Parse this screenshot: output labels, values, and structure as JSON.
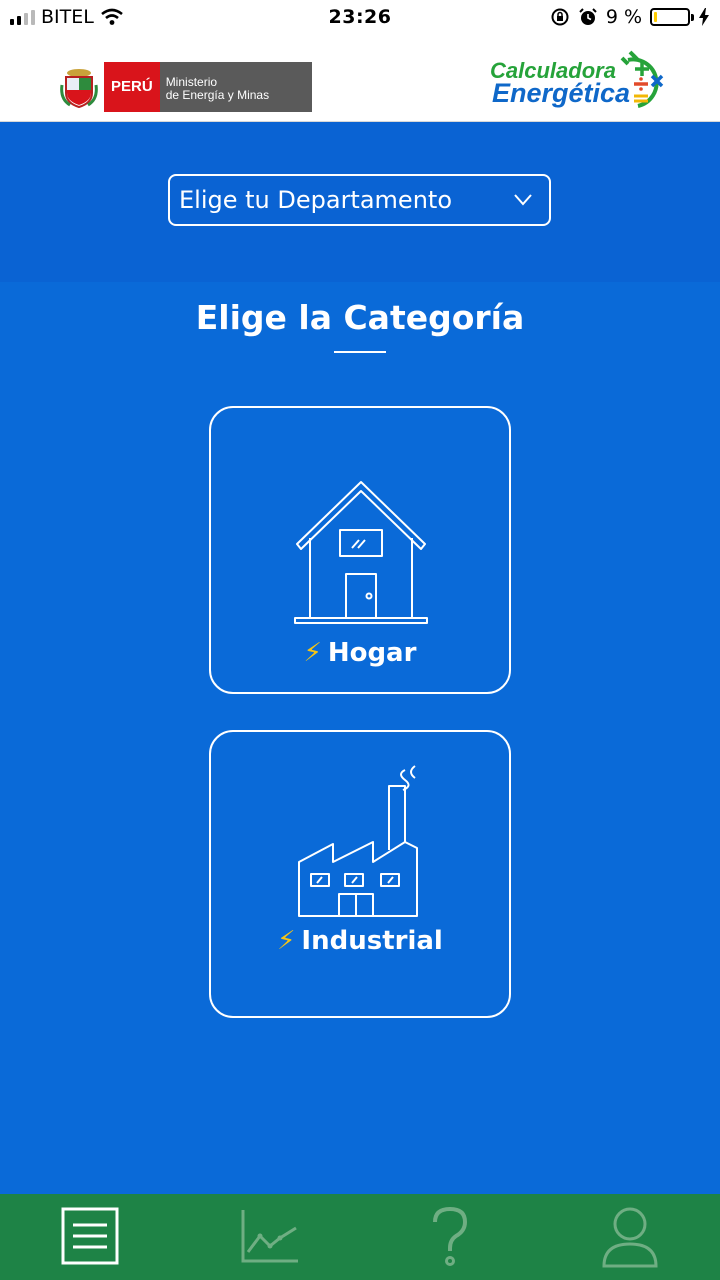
{
  "status_bar": {
    "carrier": "BITEL",
    "time": "23:26",
    "battery": "9 %"
  },
  "header": {
    "gov_logo": {
      "country": "PERÚ",
      "ministry_line1": "Ministerio",
      "ministry_line2": "de Energía y Minas"
    },
    "app_logo": {
      "line1": "Calculadora",
      "line2": "Energética"
    }
  },
  "department_select": {
    "label": "Elige tu Departamento"
  },
  "main": {
    "title": "Elige la Categoría",
    "categories": [
      {
        "label": "Hogar",
        "icon": "house-icon"
      },
      {
        "label": "Industrial",
        "icon": "factory-icon"
      }
    ]
  },
  "bottom_nav": {
    "items": [
      "menu-icon",
      "chart-icon",
      "help-icon",
      "user-icon"
    ]
  },
  "colors": {
    "background": "#0a6ad8",
    "nav_bar": "#1e8346",
    "bolt": "#f7c514",
    "peru_red": "#d9141b"
  }
}
